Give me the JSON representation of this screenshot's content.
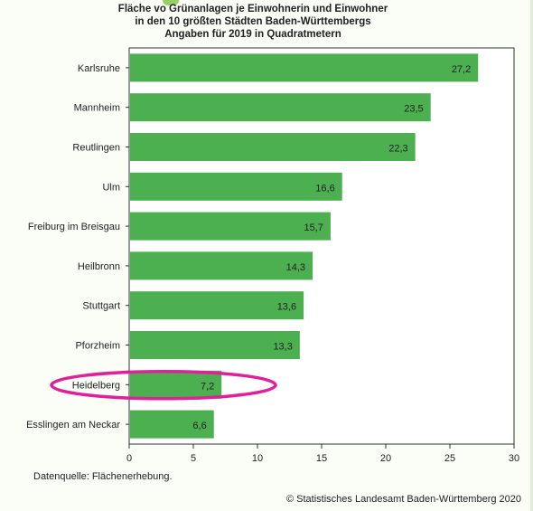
{
  "chart_data": {
    "type": "bar",
    "orientation": "horizontal",
    "title": [
      "Fläche vo Grünanlagen je Einwohnerin und Einwohner",
      "in den 10 größten Städten Baden-Württembergs",
      "Angaben für 2019  in Quadratmetern"
    ],
    "categories": [
      "Karlsruhe",
      "Mannheim",
      "Reutlingen",
      "Ulm",
      "Freiburg im Breisgau",
      "Heilbronn",
      "Stuttgart",
      "Pforzheim",
      "Heidelberg",
      "Esslingen am Neckar"
    ],
    "values": [
      27.2,
      23.5,
      22.3,
      16.6,
      15.7,
      14.3,
      13.6,
      13.3,
      7.2,
      6.6
    ],
    "value_labels": [
      "27,2",
      "23,5",
      "22,3",
      "16,6",
      "15,7",
      "14,3",
      "13,6",
      "13,3",
      "7,2",
      "6,6"
    ],
    "xlim": [
      0,
      30
    ],
    "xticks": [
      0,
      5,
      10,
      15,
      20,
      25,
      30
    ],
    "bar_color": "#4caf50",
    "highlight": {
      "category": "Heidelberg",
      "color": "#e0209a"
    },
    "grid": false,
    "xlabel": "",
    "ylabel": ""
  },
  "source": "Datenquelle: Flächenerhebung.",
  "copyright": "© Statistisches Landesamt Baden-Württemberg 2020"
}
